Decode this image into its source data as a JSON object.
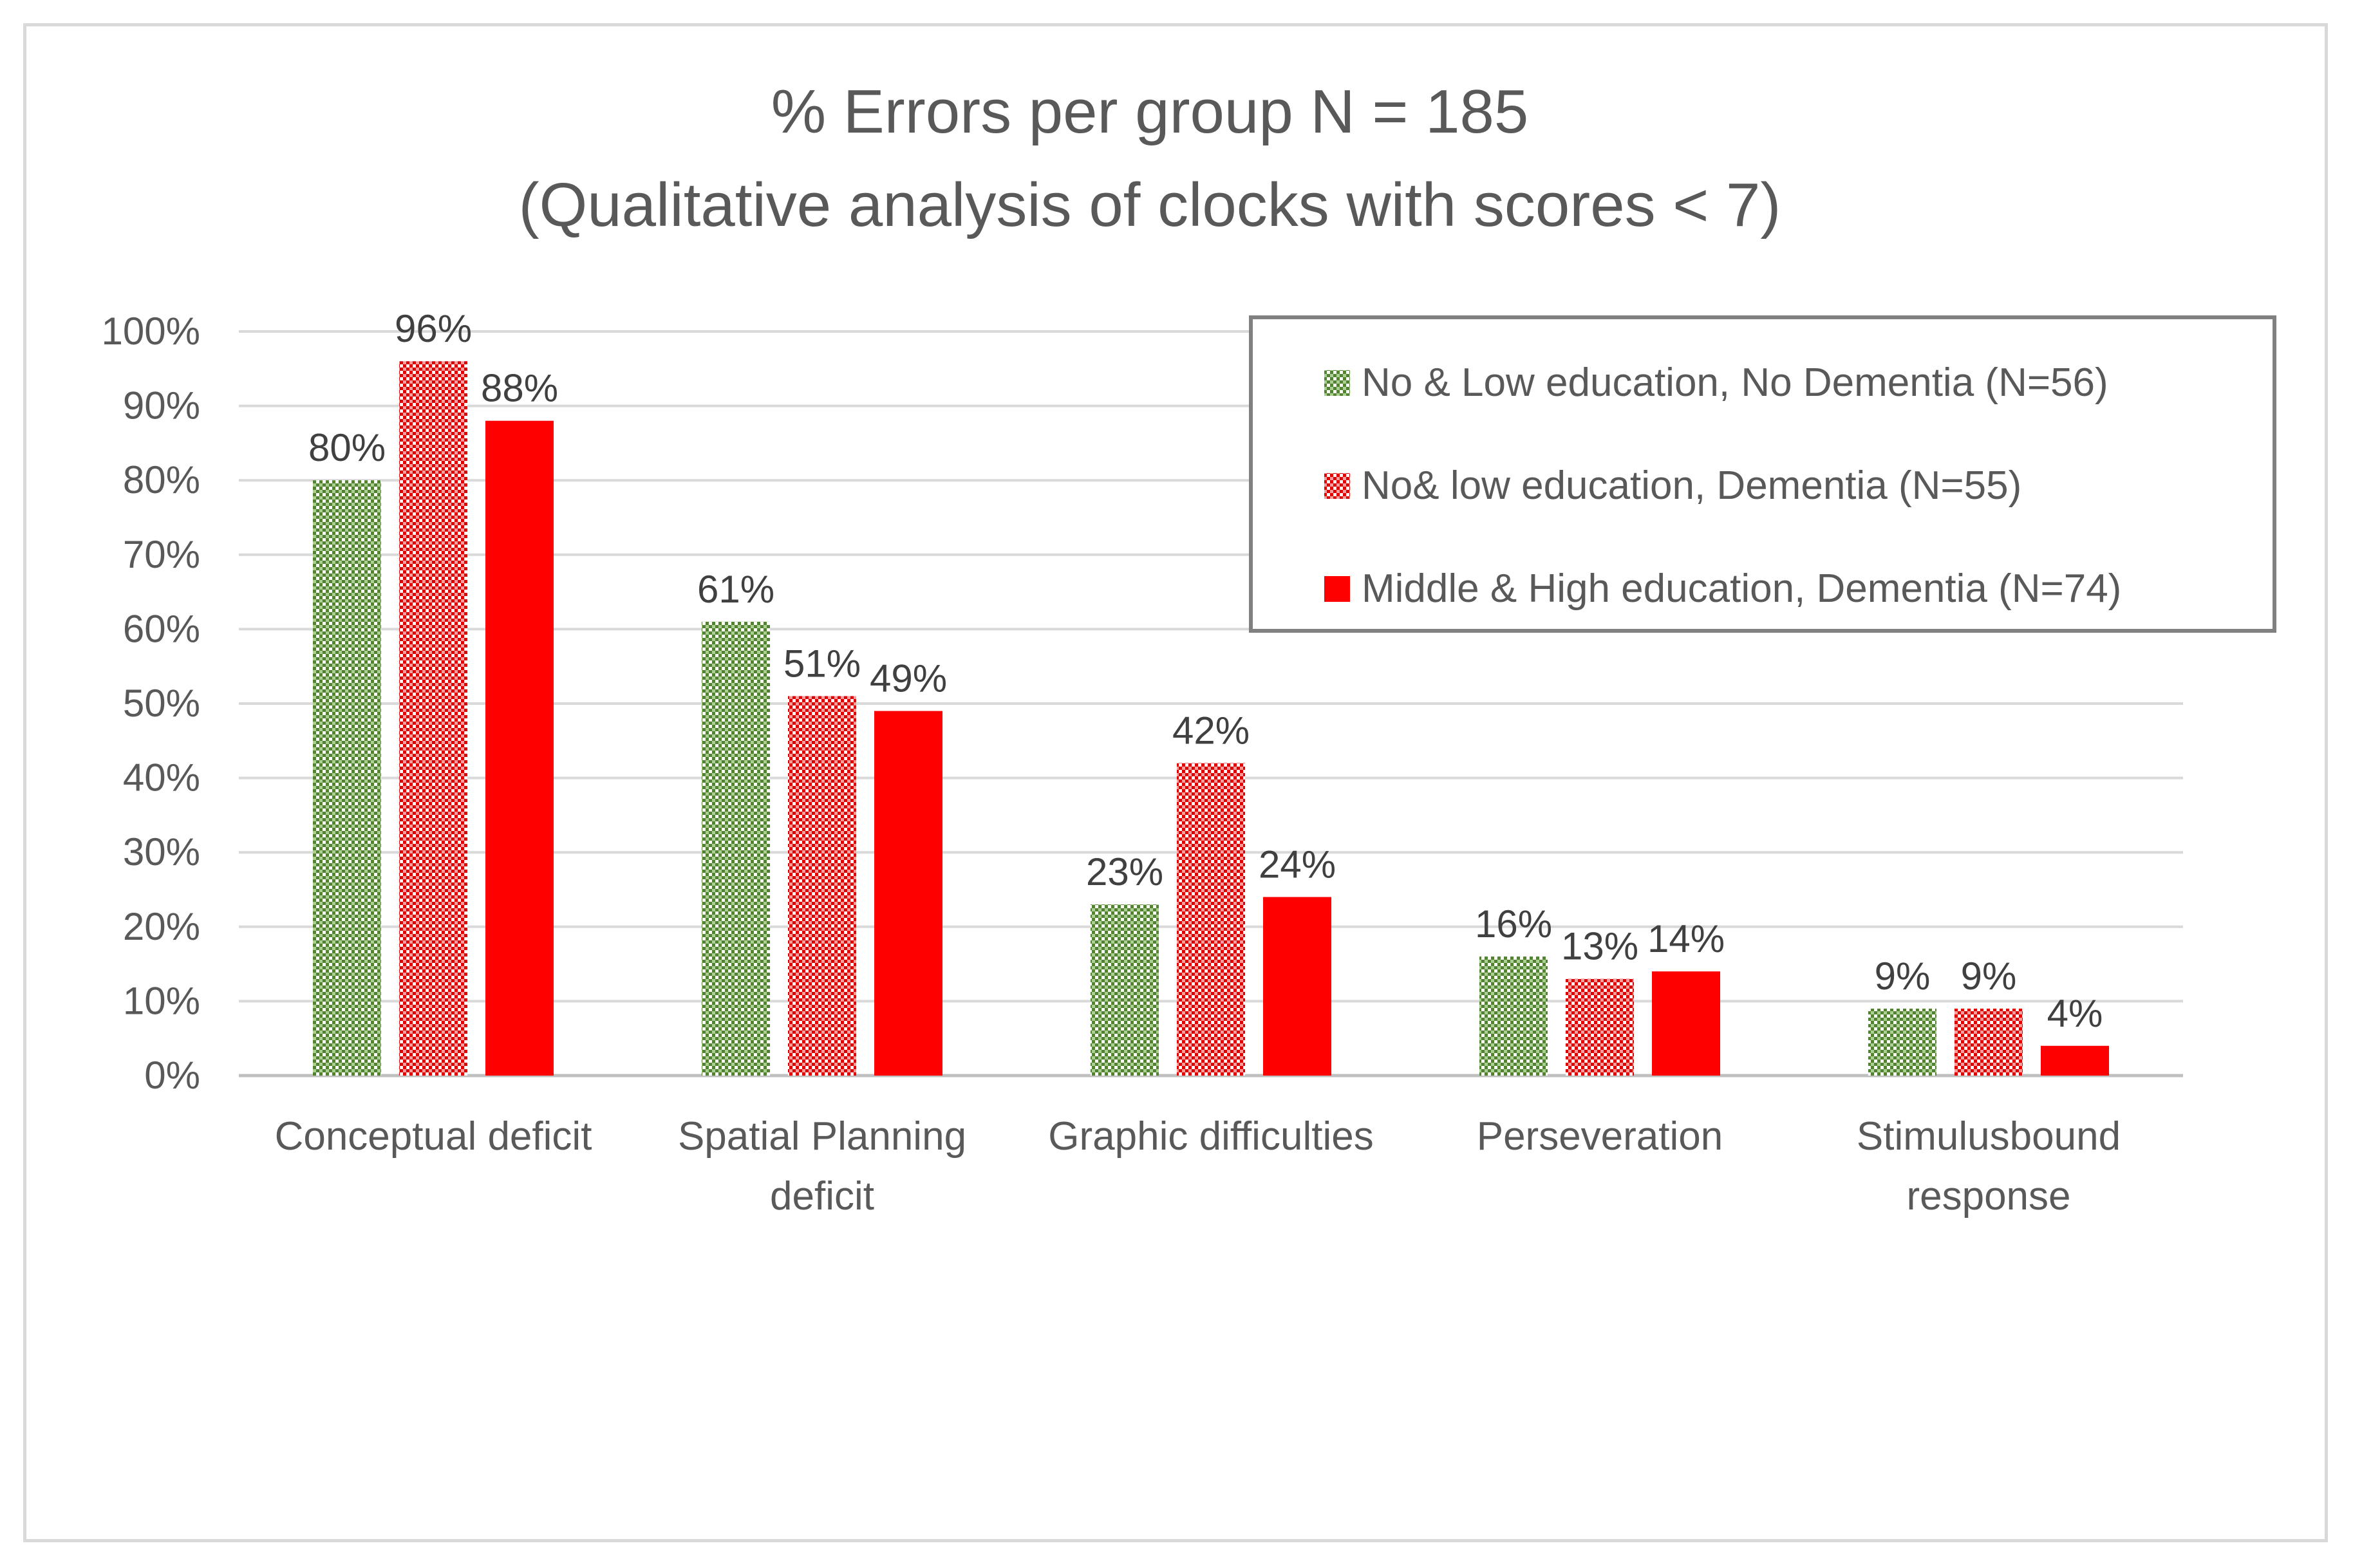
{
  "chart_data": {
    "type": "bar",
    "title": "% Errors per group N = 185",
    "subtitle": "(Qualitative analysis of clocks with scores < 7)",
    "categories": [
      [
        "Conceptual deficit"
      ],
      [
        "Spatial Planning",
        "deficit"
      ],
      [
        "Graphic difficulties"
      ],
      [
        "Perseveration"
      ],
      [
        "Stimulusbound",
        "response"
      ]
    ],
    "series": [
      {
        "name": "No & Low education, No Dementia (N=56)",
        "values": [
          80,
          61,
          23,
          16,
          9
        ],
        "labels": [
          "80%",
          "61%",
          "23%",
          "16%",
          "9%"
        ],
        "color": "#70ad47",
        "pattern": "checker"
      },
      {
        "name": "No& low education, Dementia (N=55)",
        "values": [
          96,
          51,
          42,
          13,
          9
        ],
        "labels": [
          "96%",
          "51%",
          "42%",
          "13%",
          "9%"
        ],
        "color": "#ff0000",
        "pattern": "checker"
      },
      {
        "name": "Middle & High education, Dementia (N=74)",
        "values": [
          88,
          49,
          24,
          14,
          4
        ],
        "labels": [
          "88%",
          "49%",
          "24%",
          "14%",
          "4%"
        ],
        "color": "#ff0000",
        "pattern": "solid"
      }
    ],
    "yticks": [
      "0%",
      "10%",
      "20%",
      "30%",
      "40%",
      "50%",
      "60%",
      "70%",
      "80%",
      "90%",
      "100%"
    ],
    "ylim": [
      0,
      100
    ],
    "xlabel": "",
    "ylabel": "",
    "grid": true,
    "legend_position": "top-right"
  }
}
